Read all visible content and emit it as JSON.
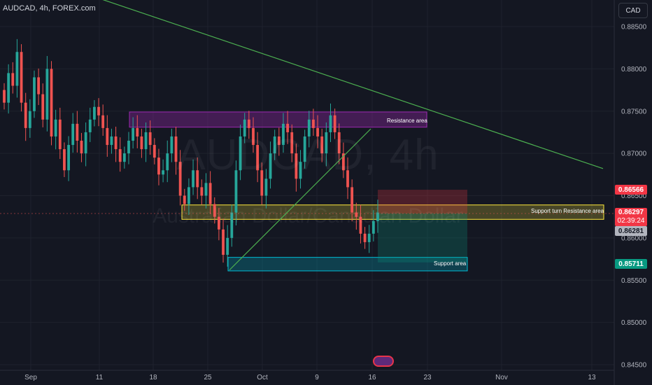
{
  "header": {
    "title": "AUDCAD, 4h, FOREX.com",
    "currency_button": "CAD"
  },
  "watermark": {
    "symbol": "AUDCAD, 4h",
    "name": "Australian Dollar/Canadian Dollar"
  },
  "price_labels": {
    "top_tag": "0.86566",
    "current_price": "0.86297",
    "countdown": "02:39:24",
    "grey_tag": "0.86281",
    "bottom_tag": "0.85711"
  },
  "colors": {
    "background": "#141722",
    "up_candle": "#26a69a",
    "down_candle": "#ef5350",
    "trendline": "#4caf50",
    "resistance_zone": "#9c27b0",
    "support_turn_zone": "#ffeb3b",
    "support_zone": "#00bcd4"
  },
  "annotations": {
    "resistance": "Resistance area",
    "support_turn": "Support turn Resistance area",
    "support": "Support area"
  },
  "chart_data": {
    "type": "candlestick",
    "ylim": [
      0.845,
      0.889
    ],
    "y_ticks": [
      "0.88500",
      "0.88000",
      "0.87500",
      "0.87000",
      "0.86500",
      "0.86000",
      "0.85500",
      "0.85000",
      "0.84500"
    ],
    "x_ticks": [
      "Sep",
      "11",
      "18",
      "25",
      "Oct",
      "9",
      "16",
      "23",
      "Nov",
      "13"
    ],
    "trendlines": [
      {
        "name": "descending",
        "from": {
          "x": "Aug 30",
          "price": 0.8895
        },
        "to": {
          "x": "Nov 3",
          "price": 0.8682
        }
      },
      {
        "name": "ascending",
        "from": {
          "x": "Sep 27",
          "price": 0.8562
        },
        "to": {
          "x": "Oct 13",
          "price": 0.8729
        }
      }
    ],
    "zones": [
      {
        "name": "Resistance area",
        "price_top": 0.8749,
        "price_bottom": 0.8731
      },
      {
        "name": "Support turn Resistance area",
        "price_top": 0.8639,
        "price_bottom": 0.8622
      },
      {
        "name": "Support area",
        "price_top": 0.8577,
        "price_bottom": 0.8561
      }
    ],
    "position": {
      "entry": 0.8629,
      "stop": 0.8657,
      "target": 0.8571
    },
    "closes": [
      0.876,
      0.8795,
      0.878,
      0.882,
      0.876,
      0.873,
      0.875,
      0.879,
      0.877,
      0.874,
      0.88,
      0.872,
      0.874,
      0.8705,
      0.868,
      0.871,
      0.8735,
      0.8715,
      0.87,
      0.8725,
      0.874,
      0.8755,
      0.8745,
      0.873,
      0.871,
      0.872,
      0.8705,
      0.869,
      0.87,
      0.8715,
      0.873,
      0.872,
      0.8705,
      0.8725,
      0.871,
      0.8695,
      0.8675,
      0.868,
      0.87,
      0.872,
      0.869,
      0.865,
      0.864,
      0.866,
      0.868,
      0.866,
      0.865,
      0.8665,
      0.864,
      0.8625,
      0.861,
      0.858,
      0.86,
      0.863,
      0.868,
      0.872,
      0.874,
      0.873,
      0.871,
      0.868,
      0.865,
      0.867,
      0.87,
      0.872,
      0.871,
      0.8735,
      0.8725,
      0.87,
      0.867,
      0.869,
      0.872,
      0.874,
      0.873,
      0.872,
      0.87,
      0.8725,
      0.8745,
      0.8725,
      0.87,
      0.868,
      0.866,
      0.863,
      0.8625,
      0.8605,
      0.8595,
      0.8605,
      0.862,
      0.863
    ]
  }
}
